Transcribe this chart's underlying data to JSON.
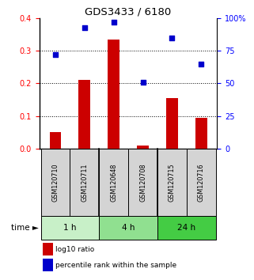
{
  "title": "GDS3433 / 6180",
  "samples": [
    "GSM120710",
    "GSM120711",
    "GSM120648",
    "GSM120708",
    "GSM120715",
    "GSM120716"
  ],
  "log10_ratio": [
    0.05,
    0.21,
    0.335,
    0.01,
    0.155,
    0.095
  ],
  "percentile_rank": [
    72,
    93,
    97,
    51,
    85,
    65
  ],
  "bar_color": "#cc0000",
  "square_color": "#0000cc",
  "left_ylim": [
    0,
    0.4
  ],
  "right_ylim": [
    0,
    100
  ],
  "left_yticks": [
    0,
    0.1,
    0.2,
    0.3,
    0.4
  ],
  "right_yticks": [
    0,
    25,
    50,
    75,
    100
  ],
  "right_yticklabels": [
    "0",
    "25",
    "50",
    "75",
    "100%"
  ],
  "time_groups": [
    {
      "label": "1 h",
      "start": 0,
      "end": 2,
      "color": "#c8f0c8"
    },
    {
      "label": "4 h",
      "start": 2,
      "end": 4,
      "color": "#90e090"
    },
    {
      "label": "24 h",
      "start": 4,
      "end": 6,
      "color": "#44cc44"
    }
  ],
  "legend_bar_label": "log10 ratio",
  "legend_square_label": "percentile rank within the sample",
  "sample_box_color": "#d4d4d4",
  "group_dividers": [
    1.5,
    3.5
  ],
  "bar_width": 0.4
}
